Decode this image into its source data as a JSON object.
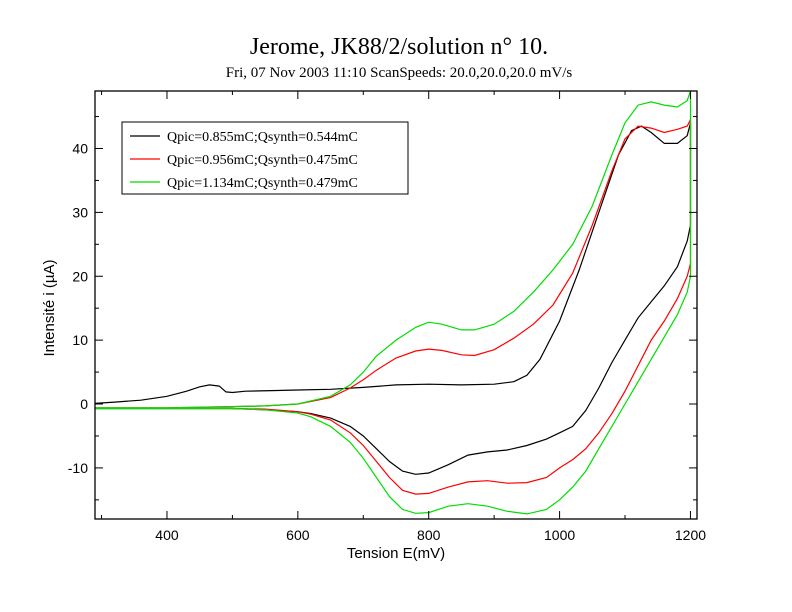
{
  "chart_data": {
    "type": "line",
    "title": "Jerome, JK88/2/solution n° 10.",
    "subtitle": "Fri, 07 Nov 2003 11:10 ScanSpeeds: 20.0,20.0,20.0 mV/s",
    "xlabel": "Tension E(mV)",
    "ylabel": "Intensité i (µA)",
    "xlim": [
      290,
      1210
    ],
    "ylim": [
      -18,
      49
    ],
    "xticks": [
      400,
      600,
      800,
      1000,
      1200
    ],
    "yticks": [
      -10,
      0,
      10,
      20,
      30,
      40
    ],
    "grid": false,
    "legend_position": "top-left",
    "series": [
      {
        "name": "Qpic=0.855mC;Qsynth=0.544mC",
        "color": "#000000",
        "points": [
          [
            290,
            0.1
          ],
          [
            320,
            0.3
          ],
          [
            360,
            0.6
          ],
          [
            400,
            1.2
          ],
          [
            430,
            2.0
          ],
          [
            450,
            2.7
          ],
          [
            465,
            3.0
          ],
          [
            480,
            2.8
          ],
          [
            490,
            1.9
          ],
          [
            500,
            1.8
          ],
          [
            520,
            2.0
          ],
          [
            560,
            2.1
          ],
          [
            600,
            2.2
          ],
          [
            650,
            2.3
          ],
          [
            700,
            2.6
          ],
          [
            750,
            3.0
          ],
          [
            800,
            3.1
          ],
          [
            850,
            3.0
          ],
          [
            900,
            3.1
          ],
          [
            930,
            3.5
          ],
          [
            950,
            4.5
          ],
          [
            970,
            7.0
          ],
          [
            1000,
            13.0
          ],
          [
            1030,
            21.0
          ],
          [
            1060,
            30.0
          ],
          [
            1090,
            39.0
          ],
          [
            1110,
            42.8
          ],
          [
            1125,
            43.5
          ],
          [
            1140,
            42.5
          ],
          [
            1160,
            40.8
          ],
          [
            1180,
            40.8
          ],
          [
            1195,
            42.0
          ],
          [
            1200,
            44.0
          ],
          [
            1200,
            28.0
          ],
          [
            1195,
            25.5
          ],
          [
            1180,
            21.5
          ],
          [
            1160,
            18.5
          ],
          [
            1140,
            16.0
          ],
          [
            1120,
            13.5
          ],
          [
            1100,
            10.0
          ],
          [
            1080,
            6.5
          ],
          [
            1060,
            2.5
          ],
          [
            1040,
            -1.0
          ],
          [
            1020,
            -3.5
          ],
          [
            1000,
            -4.5
          ],
          [
            980,
            -5.5
          ],
          [
            950,
            -6.5
          ],
          [
            920,
            -7.2
          ],
          [
            890,
            -7.5
          ],
          [
            860,
            -8.0
          ],
          [
            830,
            -9.5
          ],
          [
            800,
            -10.8
          ],
          [
            780,
            -11.0
          ],
          [
            760,
            -10.5
          ],
          [
            740,
            -9.0
          ],
          [
            720,
            -7.0
          ],
          [
            700,
            -5.0
          ],
          [
            680,
            -3.5
          ],
          [
            650,
            -2.2
          ],
          [
            620,
            -1.5
          ],
          [
            600,
            -1.2
          ],
          [
            550,
            -0.9
          ],
          [
            500,
            -0.7
          ],
          [
            450,
            -0.7
          ],
          [
            400,
            -0.7
          ],
          [
            350,
            -0.7
          ],
          [
            300,
            -0.7
          ],
          [
            290,
            -0.7
          ]
        ]
      },
      {
        "name": "Qpic=0.956mC;Qsynth=0.475mC",
        "color": "#ff0000",
        "points": [
          [
            290,
            -0.6
          ],
          [
            350,
            -0.6
          ],
          [
            400,
            -0.6
          ],
          [
            450,
            -0.5
          ],
          [
            500,
            -0.4
          ],
          [
            550,
            -0.3
          ],
          [
            600,
            0.0
          ],
          [
            650,
            1.0
          ],
          [
            680,
            2.5
          ],
          [
            700,
            3.8
          ],
          [
            720,
            5.3
          ],
          [
            750,
            7.2
          ],
          [
            780,
            8.3
          ],
          [
            800,
            8.6
          ],
          [
            820,
            8.4
          ],
          [
            850,
            7.7
          ],
          [
            870,
            7.6
          ],
          [
            900,
            8.5
          ],
          [
            930,
            10.3
          ],
          [
            960,
            12.5
          ],
          [
            990,
            15.5
          ],
          [
            1020,
            20.5
          ],
          [
            1050,
            28.0
          ],
          [
            1080,
            36.5
          ],
          [
            1100,
            41.5
          ],
          [
            1120,
            43.5
          ],
          [
            1140,
            43.2
          ],
          [
            1160,
            42.5
          ],
          [
            1180,
            43.0
          ],
          [
            1195,
            43.5
          ],
          [
            1200,
            44.5
          ],
          [
            1200,
            22.0
          ],
          [
            1195,
            20.0
          ],
          [
            1180,
            16.5
          ],
          [
            1160,
            13.0
          ],
          [
            1140,
            10.0
          ],
          [
            1120,
            6.0
          ],
          [
            1100,
            2.0
          ],
          [
            1080,
            -1.5
          ],
          [
            1060,
            -4.5
          ],
          [
            1040,
            -7.0
          ],
          [
            1020,
            -8.7
          ],
          [
            1000,
            -10.0
          ],
          [
            980,
            -11.5
          ],
          [
            950,
            -12.3
          ],
          [
            920,
            -12.4
          ],
          [
            890,
            -12.0
          ],
          [
            860,
            -12.2
          ],
          [
            830,
            -13.0
          ],
          [
            800,
            -14.0
          ],
          [
            780,
            -14.1
          ],
          [
            760,
            -13.5
          ],
          [
            740,
            -11.5
          ],
          [
            720,
            -9.0
          ],
          [
            700,
            -6.5
          ],
          [
            680,
            -4.5
          ],
          [
            650,
            -2.5
          ],
          [
            620,
            -1.6
          ],
          [
            600,
            -1.2
          ],
          [
            550,
            -0.8
          ],
          [
            500,
            -0.7
          ],
          [
            450,
            -0.7
          ],
          [
            400,
            -0.7
          ],
          [
            350,
            -0.7
          ],
          [
            300,
            -0.7
          ],
          [
            290,
            -0.7
          ]
        ]
      },
      {
        "name": "Qpic=1.134mC;Qsynth=0.479mC",
        "color": "#00dd00",
        "points": [
          [
            290,
            -0.6
          ],
          [
            350,
            -0.6
          ],
          [
            400,
            -0.6
          ],
          [
            450,
            -0.5
          ],
          [
            500,
            -0.4
          ],
          [
            550,
            -0.3
          ],
          [
            600,
            0.0
          ],
          [
            650,
            1.2
          ],
          [
            680,
            3.0
          ],
          [
            700,
            5.0
          ],
          [
            720,
            7.5
          ],
          [
            750,
            10.0
          ],
          [
            780,
            12.0
          ],
          [
            800,
            12.8
          ],
          [
            820,
            12.5
          ],
          [
            850,
            11.6
          ],
          [
            870,
            11.6
          ],
          [
            900,
            12.5
          ],
          [
            930,
            14.5
          ],
          [
            960,
            17.5
          ],
          [
            990,
            21.0
          ],
          [
            1020,
            25.0
          ],
          [
            1050,
            31.0
          ],
          [
            1080,
            39.0
          ],
          [
            1100,
            44.0
          ],
          [
            1120,
            46.8
          ],
          [
            1140,
            47.3
          ],
          [
            1160,
            46.8
          ],
          [
            1180,
            46.5
          ],
          [
            1195,
            47.5
          ],
          [
            1200,
            49.0
          ],
          [
            1200,
            20.0
          ],
          [
            1195,
            17.5
          ],
          [
            1180,
            14.0
          ],
          [
            1160,
            10.5
          ],
          [
            1140,
            7.0
          ],
          [
            1120,
            3.5
          ],
          [
            1100,
            0.0
          ],
          [
            1080,
            -3.5
          ],
          [
            1060,
            -7.0
          ],
          [
            1040,
            -10.5
          ],
          [
            1020,
            -13.0
          ],
          [
            1000,
            -15.0
          ],
          [
            980,
            -16.5
          ],
          [
            950,
            -17.2
          ],
          [
            920,
            -16.8
          ],
          [
            890,
            -16.0
          ],
          [
            860,
            -15.6
          ],
          [
            830,
            -16.0
          ],
          [
            800,
            -17.0
          ],
          [
            780,
            -17.1
          ],
          [
            760,
            -16.5
          ],
          [
            740,
            -14.5
          ],
          [
            720,
            -11.5
          ],
          [
            700,
            -8.5
          ],
          [
            680,
            -6.0
          ],
          [
            650,
            -3.5
          ],
          [
            620,
            -2.0
          ],
          [
            600,
            -1.4
          ],
          [
            550,
            -0.9
          ],
          [
            500,
            -0.7
          ],
          [
            450,
            -0.7
          ],
          [
            400,
            -0.7
          ],
          [
            350,
            -0.7
          ],
          [
            300,
            -0.7
          ],
          [
            290,
            -0.7
          ]
        ]
      }
    ]
  }
}
